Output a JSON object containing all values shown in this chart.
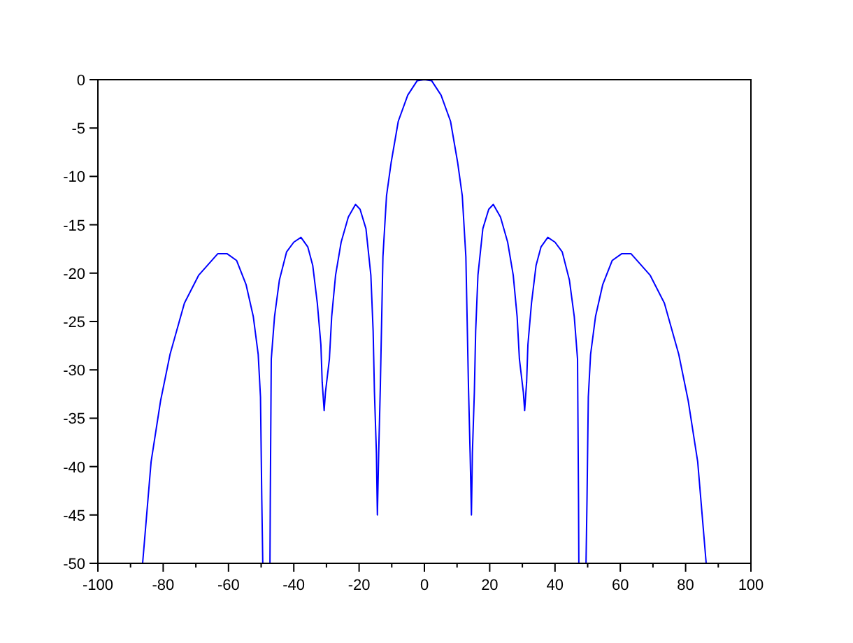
{
  "chart_data": {
    "type": "line",
    "xlim": [
      -100,
      100
    ],
    "ylim": [
      -50,
      0
    ],
    "xticks": [
      -100,
      {
        "value": -90,
        "label": null
      },
      -80,
      {
        "value": -70,
        "label": null
      },
      -60,
      {
        "value": -50,
        "label": null
      },
      -40,
      {
        "value": -30,
        "label": null
      },
      -20,
      {
        "value": -10,
        "label": null
      },
      0,
      {
        "value": 10,
        "label": null
      },
      20,
      {
        "value": 30,
        "label": null
      },
      40,
      {
        "value": 50,
        "label": null
      },
      60,
      {
        "value": 70,
        "label": null
      },
      80,
      {
        "value": 90,
        "label": null
      },
      100
    ],
    "yticks": [
      -50,
      -45,
      -40,
      -35,
      -30,
      -25,
      -20,
      -15,
      -10,
      -5,
      0
    ],
    "grid": false,
    "marker": "none",
    "line_style": "solid",
    "series": [
      {
        "color": "#0000ff",
        "x": [
          -86.3,
          -83.7,
          -80.8,
          -77.9,
          -73.5,
          -69.1,
          -63.3,
          -60.4,
          -57.5,
          -54.6,
          -52.4,
          -50.9,
          -50.2,
          -49.8,
          -49.5,
          -48.4,
          -47.3,
          -47.2,
          -46.9,
          -45.9,
          -44.4,
          -42.2,
          -40,
          -37.8,
          -35.7,
          -34.2,
          -32.8,
          -31.7,
          -31.3,
          -30.7,
          -30.3,
          -29.1,
          -28.4,
          -27.2,
          -25.5,
          -23.3,
          -21.1,
          -19.7,
          -17.9,
          -16.4,
          -15.7,
          -15.3,
          -14.7,
          -14.4,
          -14,
          -13.5,
          -13.1,
          -12.7,
          -11.6,
          -10.2,
          -8,
          -5.1,
          -2.2,
          0,
          2.2,
          5.1,
          8,
          10.2,
          11.6,
          12.7,
          13.1,
          13.5,
          14,
          14.4,
          14.7,
          15.3,
          15.7,
          16.4,
          17.9,
          19.7,
          21.1,
          23.3,
          25.5,
          27.2,
          28.4,
          29.1,
          30.3,
          30.7,
          31.3,
          31.7,
          32.8,
          34.2,
          35.7,
          37.8,
          40,
          42.2,
          44.4,
          45.9,
          46.9,
          47.2,
          47.3,
          48.4,
          49.5,
          49.8,
          50.2,
          50.9,
          52.4,
          54.6,
          57.5,
          60.4,
          63.3,
          69.1,
          73.5,
          77.9,
          80.8,
          83.7,
          86.3
        ],
        "values": [
          -50,
          -39.5,
          -33.2,
          -28.4,
          -23.1,
          -20.2,
          -18,
          -18,
          -18.7,
          -21.2,
          -24.5,
          -28.4,
          -32.8,
          -43.4,
          -50,
          null,
          -50,
          -43.4,
          -28.9,
          -24.5,
          -20.7,
          -17.8,
          -16.8,
          -16.3,
          -17.3,
          -19.2,
          -23.1,
          -27.4,
          -31.3,
          -34.2,
          -32.3,
          -28.9,
          -24.5,
          -20.2,
          -16.8,
          -14.2,
          -12.9,
          -13.4,
          -15.4,
          -20.2,
          -26,
          -32.3,
          -38.6,
          -45,
          -38.6,
          -31.8,
          -25,
          -18.3,
          -12,
          -8.6,
          -4.3,
          -1.6,
          -0.1,
          0,
          -0.1,
          -1.6,
          -4.3,
          -8.6,
          -12,
          -18.3,
          -25,
          -31.8,
          -38.6,
          -45,
          -38.6,
          -32.3,
          -26,
          -20.2,
          -15.4,
          -13.4,
          -12.9,
          -14.2,
          -16.8,
          -20.2,
          -24.5,
          -28.9,
          -32.3,
          -34.2,
          -31.3,
          -27.4,
          -23.1,
          -19.2,
          -17.3,
          -16.3,
          -16.8,
          -17.8,
          -20.7,
          -24.5,
          -28.9,
          -43.4,
          -50,
          null,
          -50,
          -43.4,
          -32.8,
          -28.4,
          -24.5,
          -21.2,
          -18.7,
          -18,
          -18,
          -20.2,
          -23.1,
          -28.4,
          -33.2,
          -39.5,
          -50
        ]
      }
    ]
  }
}
